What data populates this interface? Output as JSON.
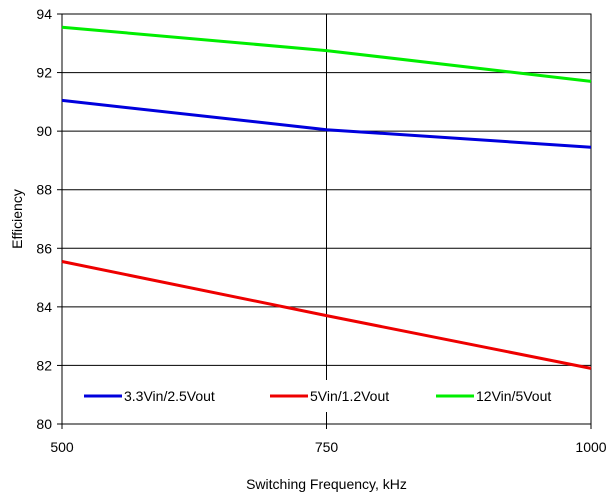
{
  "chart_data": {
    "type": "line",
    "title": "",
    "xlabel": "Switching Frequency, kHz",
    "ylabel": "Efficiency",
    "x": [
      500,
      750,
      1000
    ],
    "xlim": [
      500,
      1000
    ],
    "ylim": [
      80,
      94
    ],
    "x_ticks": [
      "500",
      "750",
      "1000"
    ],
    "y_ticks": [
      "80",
      "82",
      "84",
      "86",
      "88",
      "90",
      "92",
      "94"
    ],
    "grid": {
      "horizontal": true,
      "vertical": true
    },
    "legend_position": "bottom",
    "series": [
      {
        "name": "3.3Vin/2.5Vout",
        "color": "#0000dd",
        "values": [
          91.05,
          90.05,
          89.45
        ]
      },
      {
        "name": "5Vin/1.2Vout",
        "color": "#ee0000",
        "values": [
          85.55,
          83.7,
          81.9
        ]
      },
      {
        "name": "12Vin/5Vout",
        "color": "#00ee00",
        "values": [
          93.55,
          92.75,
          91.7
        ]
      }
    ]
  }
}
